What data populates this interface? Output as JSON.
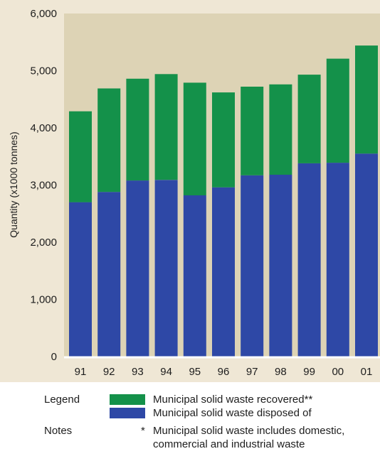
{
  "chart_data": {
    "type": "bar",
    "stacked": true,
    "categories": [
      "91",
      "92",
      "93",
      "94",
      "95",
      "96",
      "97",
      "98",
      "99",
      "00",
      "01"
    ],
    "series": [
      {
        "name": "Municipal solid waste disposed of",
        "color": "#2e48a6",
        "values": [
          2700,
          2880,
          3080,
          3090,
          2820,
          2960,
          3170,
          3180,
          3380,
          3390,
          3550
        ]
      },
      {
        "name": "Municipal solid waste recovered**",
        "color": "#14914a",
        "values": [
          1590,
          1810,
          1780,
          1850,
          1970,
          1660,
          1550,
          1580,
          1550,
          1820,
          1890
        ]
      }
    ],
    "ylabel": "Quantity (x1000 tonnes)",
    "xlabel": "",
    "ylim": [
      0,
      6000
    ],
    "yticks": [
      0,
      1000,
      2000,
      3000,
      4000,
      5000,
      6000
    ],
    "ytick_labels": [
      "0",
      "1,000",
      "2,000",
      "3,000",
      "4,000",
      "5,000",
      "6,000"
    ],
    "grid": false,
    "plot_background": "#ddd3b5"
  },
  "legend": {
    "heading": "Legend",
    "items": [
      {
        "label": "Municipal solid waste recovered**",
        "color": "#14914a"
      },
      {
        "label": "Municipal solid waste disposed of",
        "color": "#2e48a6"
      }
    ]
  },
  "notes": {
    "heading": "Notes",
    "bullet": "*",
    "line1": "Municipal solid waste includes domestic,",
    "line2": "commercial and industrial waste"
  }
}
